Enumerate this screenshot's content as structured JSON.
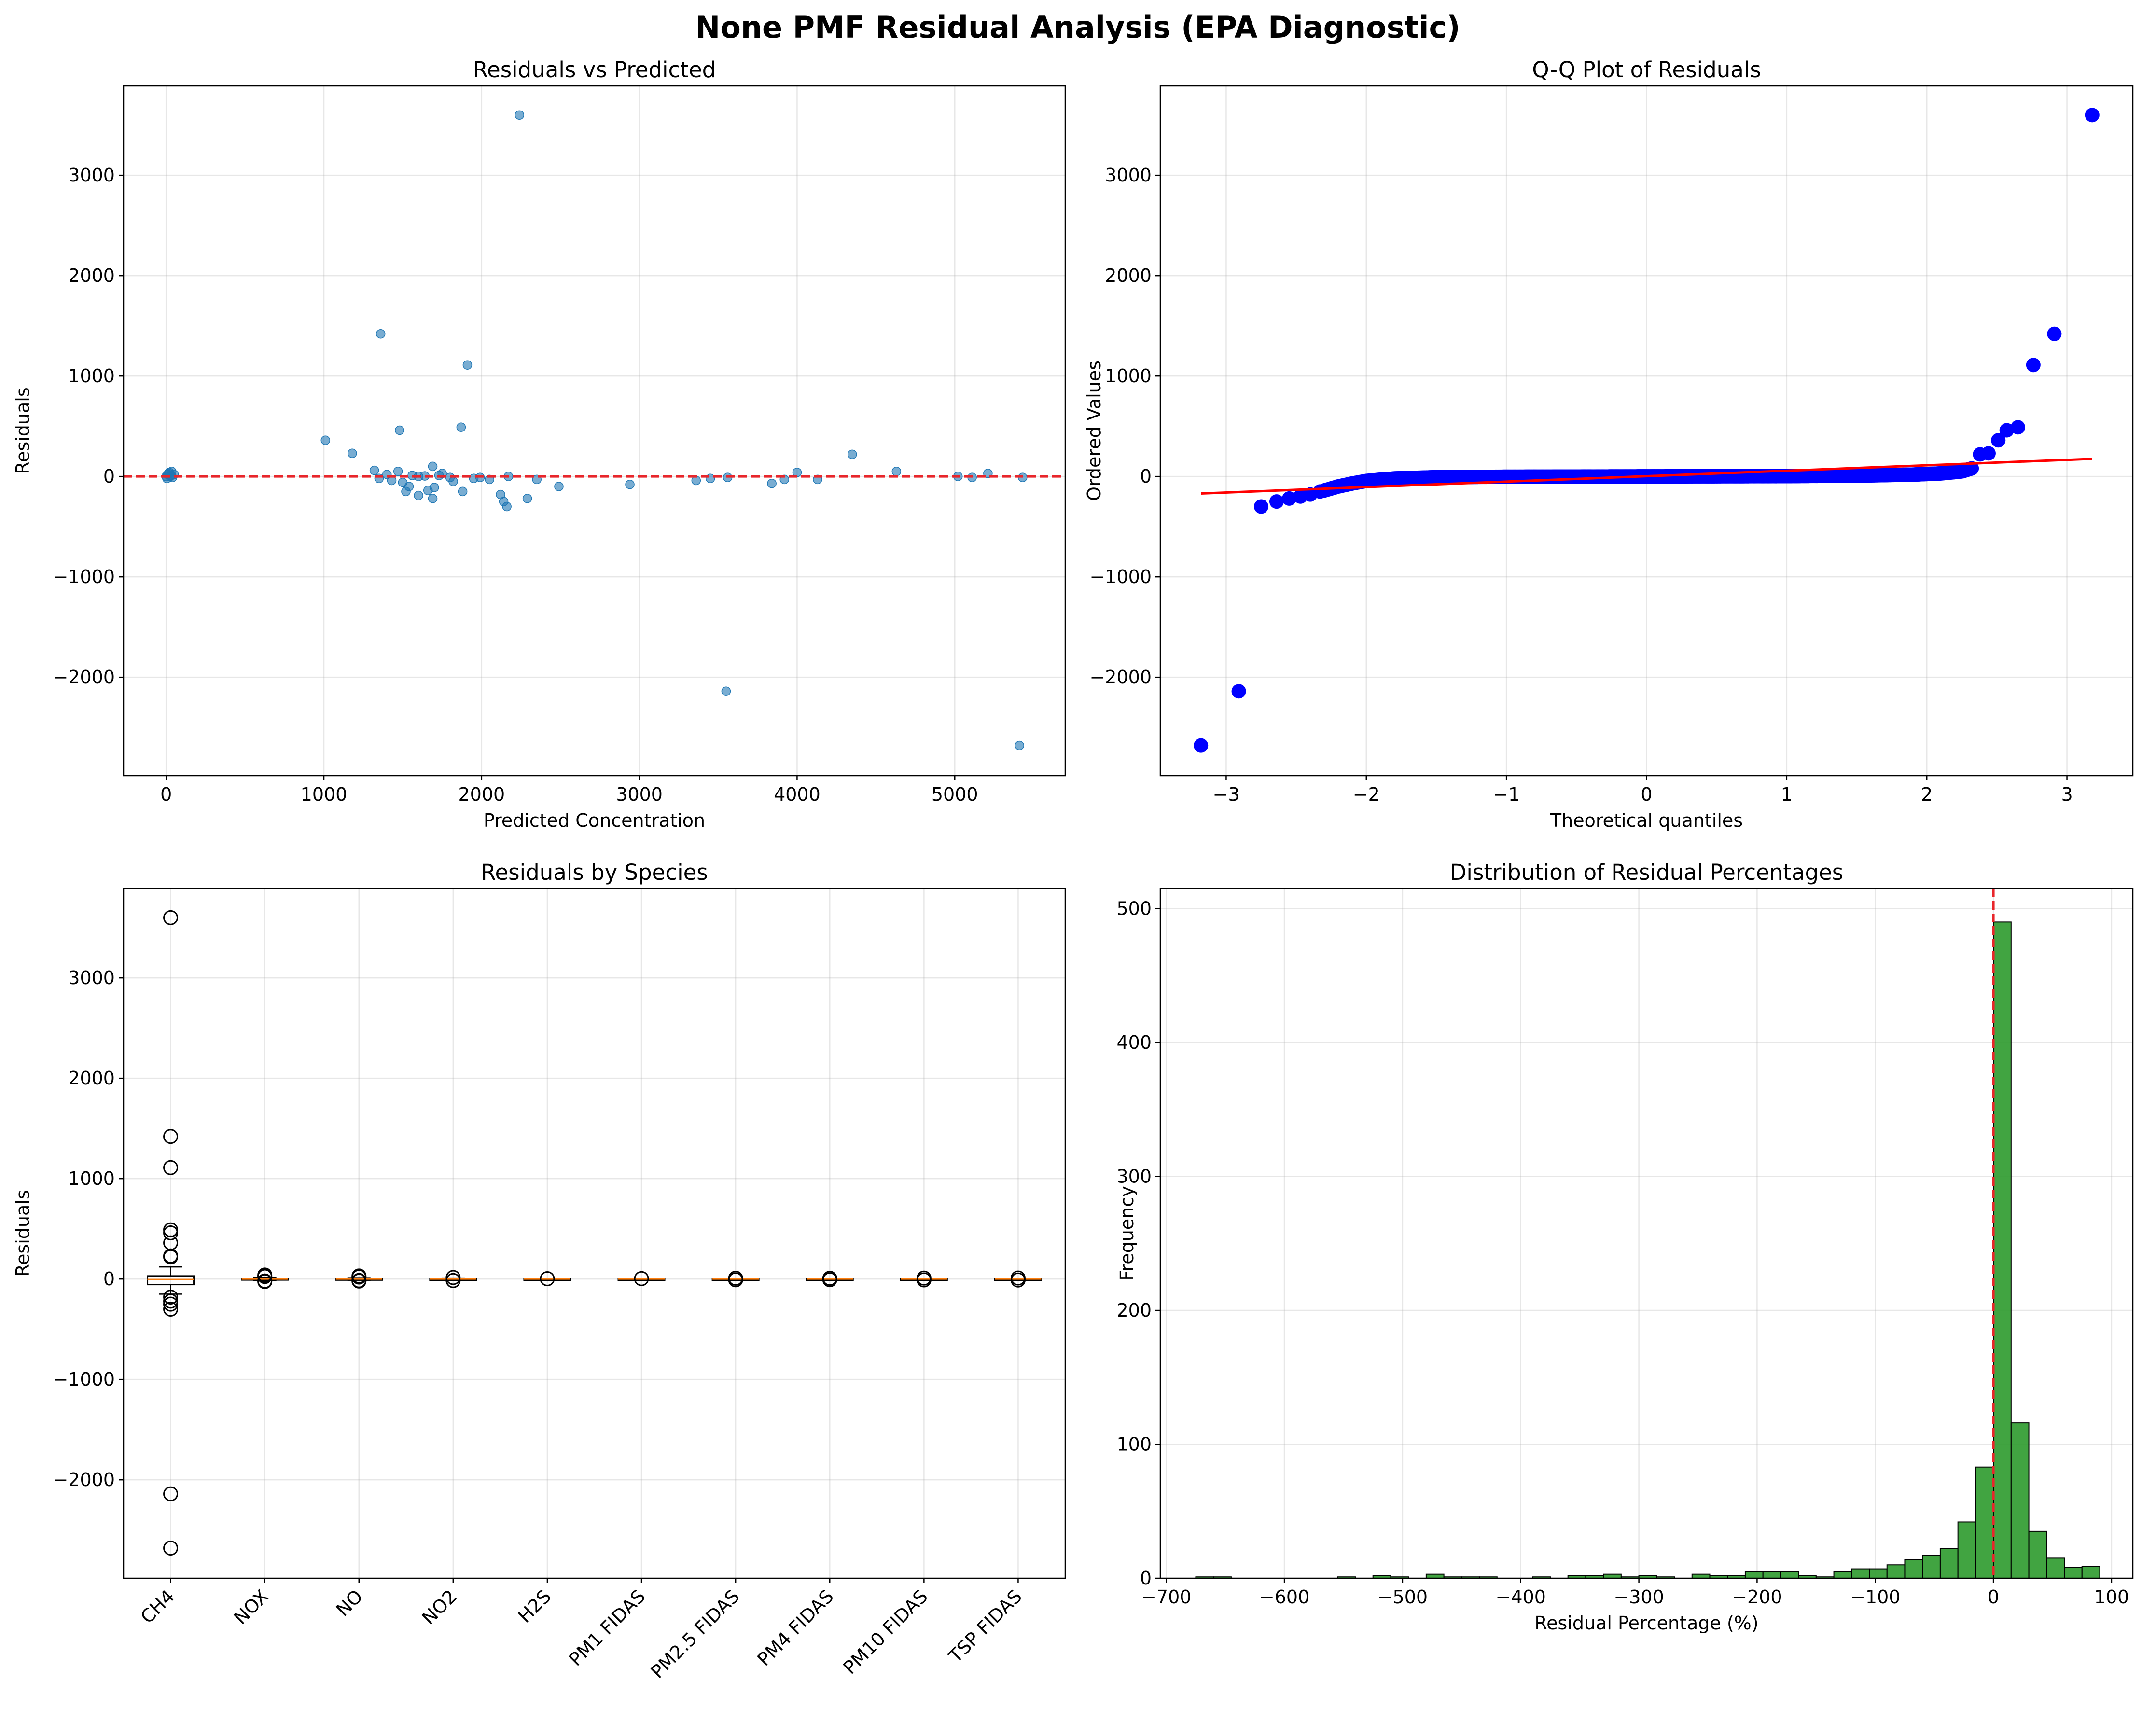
{
  "figure": {
    "title": "None PMF Residual Analysis (EPA Diagnostic)"
  },
  "colors": {
    "scatter": "#1f77b4",
    "qq_points": "#0000ff",
    "qq_line": "#ff0000",
    "zero_line": "#e8262b",
    "hist_fill": "#2c9a2c",
    "median": "#ff7f0e"
  },
  "chart_data": [
    {
      "type": "scatter",
      "title": "Residuals vs Predicted",
      "xlabel": "Predicted Concentration",
      "ylabel": "Residuals",
      "xlim": [
        -270,
        5700
      ],
      "ylim": [
        -2980,
        3890
      ],
      "xticks": [
        0,
        1000,
        2000,
        3000,
        4000,
        5000
      ],
      "yticks": [
        -2000,
        -1000,
        0,
        1000,
        2000,
        3000
      ],
      "grid": true,
      "reference_line_y": 0,
      "points": [
        {
          "x": 2240,
          "y": 3600
        },
        {
          "x": 1360,
          "y": 1420
        },
        {
          "x": 1910,
          "y": 1110
        },
        {
          "x": 1870,
          "y": 490
        },
        {
          "x": 1480,
          "y": 460
        },
        {
          "x": 1010,
          "y": 360
        },
        {
          "x": 1180,
          "y": 230
        },
        {
          "x": 4350,
          "y": 220
        },
        {
          "x": 1690,
          "y": 100
        },
        {
          "x": 1320,
          "y": 60
        },
        {
          "x": 4630,
          "y": 50
        },
        {
          "x": 4000,
          "y": 40
        },
        {
          "x": 1470,
          "y": 50
        },
        {
          "x": 1750,
          "y": 30
        },
        {
          "x": 1400,
          "y": 20
        },
        {
          "x": 1560,
          "y": 10
        },
        {
          "x": 1640,
          "y": 5
        },
        {
          "x": 1800,
          "y": -10
        },
        {
          "x": 1350,
          "y": -20
        },
        {
          "x": 1430,
          "y": -40
        },
        {
          "x": 1500,
          "y": -60
        },
        {
          "x": 1540,
          "y": -100
        },
        {
          "x": 1520,
          "y": -150
        },
        {
          "x": 1600,
          "y": -190
        },
        {
          "x": 1660,
          "y": -140
        },
        {
          "x": 1690,
          "y": -220
        },
        {
          "x": 1700,
          "y": -110
        },
        {
          "x": 1820,
          "y": -50
        },
        {
          "x": 1880,
          "y": -150
        },
        {
          "x": 1950,
          "y": -20
        },
        {
          "x": 2050,
          "y": -30
        },
        {
          "x": 2120,
          "y": -180
        },
        {
          "x": 2140,
          "y": -250
        },
        {
          "x": 2160,
          "y": -300
        },
        {
          "x": 2290,
          "y": -220
        },
        {
          "x": 2350,
          "y": -30
        },
        {
          "x": 2490,
          "y": -100
        },
        {
          "x": 2940,
          "y": -80
        },
        {
          "x": 3360,
          "y": -40
        },
        {
          "x": 3450,
          "y": -20
        },
        {
          "x": 3560,
          "y": -10
        },
        {
          "x": 3840,
          "y": -70
        },
        {
          "x": 3920,
          "y": -30
        },
        {
          "x": 4130,
          "y": -30
        },
        {
          "x": 5020,
          "y": 0
        },
        {
          "x": 5110,
          "y": -10
        },
        {
          "x": 5210,
          "y": 30
        },
        {
          "x": 5430,
          "y": -10
        },
        {
          "x": 3550,
          "y": -2140
        },
        {
          "x": 5410,
          "y": -2680
        },
        {
          "x": 2170,
          "y": 0
        },
        {
          "x": 1990,
          "y": -10
        },
        {
          "x": 1600,
          "y": 0
        },
        {
          "x": 1730,
          "y": 10
        },
        {
          "x": 0,
          "y": 0
        },
        {
          "x": 10,
          "y": 20
        },
        {
          "x": 20,
          "y": 40
        },
        {
          "x": 30,
          "y": 10
        },
        {
          "x": 40,
          "y": -10
        },
        {
          "x": 50,
          "y": 20
        },
        {
          "x": 5,
          "y": -20
        },
        {
          "x": 15,
          "y": 30
        },
        {
          "x": 25,
          "y": 0
        },
        {
          "x": 35,
          "y": 50
        }
      ]
    },
    {
      "type": "scatter",
      "title": "Q-Q Plot of Residuals",
      "xlabel": "Theoretical quantiles",
      "ylabel": "Ordered Values",
      "xlim": [
        -3.47,
        3.47
      ],
      "ylim": [
        -2980,
        3890
      ],
      "xticks": [
        -3,
        -2,
        -1,
        0,
        1,
        2,
        3
      ],
      "yticks": [
        -2000,
        -1000,
        0,
        1000,
        2000,
        3000
      ],
      "grid": true,
      "fit_line": {
        "x": [
          -3.18,
          3.18
        ],
        "y": [
          -170,
          175
        ]
      },
      "outlier_points": [
        {
          "x": -3.18,
          "y": -2680
        },
        {
          "x": -2.91,
          "y": -2140
        },
        {
          "x": -2.75,
          "y": -300
        },
        {
          "x": -2.64,
          "y": -250
        },
        {
          "x": -2.55,
          "y": -220
        },
        {
          "x": -2.47,
          "y": -200
        },
        {
          "x": -2.4,
          "y": -180
        },
        {
          "x": -2.33,
          "y": -150
        },
        {
          "x": 2.38,
          "y": 220
        },
        {
          "x": 2.44,
          "y": 230
        },
        {
          "x": 2.51,
          "y": 360
        },
        {
          "x": 2.57,
          "y": 460
        },
        {
          "x": 2.65,
          "y": 490
        },
        {
          "x": 2.76,
          "y": 1110
        },
        {
          "x": 2.91,
          "y": 1420
        },
        {
          "x": 3.18,
          "y": 3600
        }
      ],
      "bulk_curve": [
        {
          "x": -2.3,
          "y": -140
        },
        {
          "x": -2.2,
          "y": -100
        },
        {
          "x": -2.1,
          "y": -70
        },
        {
          "x": -2.0,
          "y": -45
        },
        {
          "x": -1.8,
          "y": -20
        },
        {
          "x": -1.5,
          "y": -8
        },
        {
          "x": -1.0,
          "y": -3
        },
        {
          "x": 0.0,
          "y": 0
        },
        {
          "x": 1.0,
          "y": 3
        },
        {
          "x": 1.5,
          "y": 8
        },
        {
          "x": 1.9,
          "y": 18
        },
        {
          "x": 2.1,
          "y": 30
        },
        {
          "x": 2.25,
          "y": 50
        },
        {
          "x": 2.32,
          "y": 80
        }
      ]
    },
    {
      "type": "box",
      "title": "Residuals by Species",
      "xlabel": "",
      "ylabel": "Residuals",
      "ylim": [
        -2980,
        3890
      ],
      "yticks": [
        -2000,
        -1000,
        0,
        1000,
        2000,
        3000
      ],
      "grid": true,
      "categories": [
        "CH4",
        "NOX",
        "NO",
        "NO2",
        "H2S",
        "PM1 FIDAS",
        "PM2.5 FIDAS",
        "PM4 FIDAS",
        "PM10 FIDAS",
        "TSP FIDAS"
      ],
      "boxes": [
        {
          "q1": -55,
          "median": -5,
          "q3": 30,
          "whislo": -150,
          "whishi": 120,
          "fliers": [
            3600,
            1420,
            1110,
            490,
            460,
            360,
            230,
            220,
            -180,
            -220,
            -250,
            -300,
            -2140,
            -2680
          ]
        },
        {
          "q1": -5,
          "median": 0,
          "q3": 5,
          "whislo": -15,
          "whishi": 15,
          "fliers": [
            40,
            30,
            25,
            -20,
            -25
          ]
        },
        {
          "q1": -4,
          "median": 0,
          "q3": 4,
          "whislo": -12,
          "whishi": 12,
          "fliers": [
            30,
            20,
            -15,
            -20
          ]
        },
        {
          "q1": -3,
          "median": 0,
          "q3": 3,
          "whislo": -10,
          "whishi": 10,
          "fliers": [
            15,
            -15
          ]
        },
        {
          "q1": -1,
          "median": 0,
          "q3": 1,
          "whislo": -2,
          "whishi": 2,
          "fliers": [
            3
          ]
        },
        {
          "q1": -1,
          "median": 0,
          "q3": 1,
          "whislo": -3,
          "whishi": 3,
          "fliers": [
            4
          ]
        },
        {
          "q1": -2,
          "median": 0,
          "q3": 2,
          "whislo": -5,
          "whishi": 5,
          "fliers": [
            8,
            -8
          ]
        },
        {
          "q1": -2,
          "median": 0,
          "q3": 2,
          "whislo": -5,
          "whishi": 5,
          "fliers": [
            7,
            -7
          ]
        },
        {
          "q1": -2,
          "median": 0,
          "q3": 2,
          "whislo": -6,
          "whishi": 6,
          "fliers": [
            9,
            -9
          ]
        },
        {
          "q1": -2,
          "median": 0,
          "q3": 2,
          "whislo": -6,
          "whishi": 6,
          "fliers": [
            10,
            -10
          ]
        }
      ]
    },
    {
      "type": "histogram",
      "title": "Distribution of Residual Percentages",
      "xlabel": "Residual Percentage (%)",
      "ylabel": "Frequency",
      "xlim": [
        -705,
        118
      ],
      "ylim": [
        0,
        515
      ],
      "xticks": [
        -700,
        -600,
        -500,
        -400,
        -300,
        -200,
        -100,
        0,
        100
      ],
      "yticks": [
        0,
        100,
        200,
        300,
        400,
        500
      ],
      "grid": true,
      "reference_line_x": 0,
      "bin_edges": [
        -675,
        -660,
        -645,
        -630,
        -615,
        -600,
        -585,
        -570,
        -555,
        -540,
        -525,
        -510,
        -495,
        -480,
        -465,
        -450,
        -435,
        -420,
        -405,
        -390,
        -375,
        -360,
        -345,
        -330,
        -315,
        -300,
        -285,
        -270,
        -255,
        -240,
        -225,
        -210,
        -195,
        -180,
        -165,
        -150,
        -135,
        -120,
        -105,
        -90,
        -75,
        -60,
        -45,
        -30,
        -15,
        0,
        15,
        30,
        45,
        60,
        75,
        90
      ],
      "counts": [
        1,
        1,
        0,
        0,
        0,
        0,
        0,
        0,
        1,
        0,
        2,
        1,
        0,
        3,
        1,
        1,
        1,
        0,
        0,
        1,
        0,
        2,
        2,
        3,
        1,
        2,
        1,
        0,
        3,
        2,
        2,
        5,
        5,
        5,
        2,
        1,
        5,
        7,
        7,
        10,
        14,
        17,
        22,
        42,
        83,
        490,
        116,
        35,
        15,
        8,
        9
      ]
    }
  ]
}
